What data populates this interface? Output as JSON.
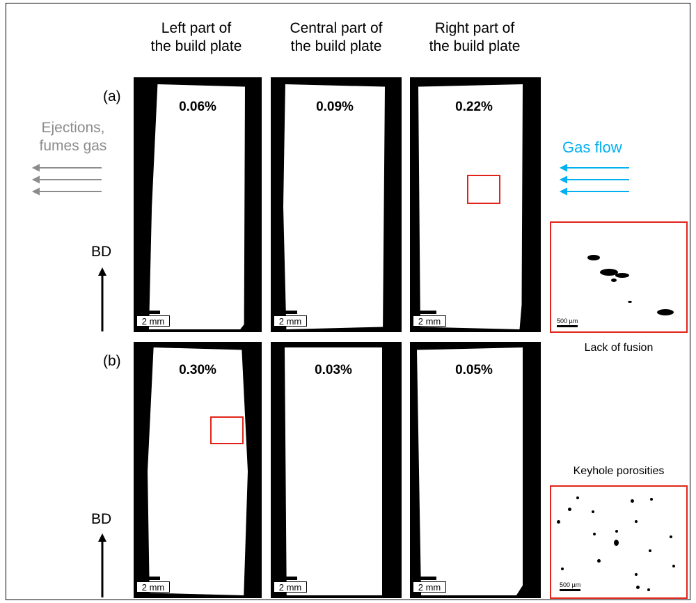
{
  "columns": [
    "Left part of the build plate",
    "Central part of the build plate",
    "Right part of the build plate"
  ],
  "column_lines": [
    [
      "Left part of",
      "the build plate"
    ],
    [
      "Central part of",
      "the build plate"
    ],
    [
      "Right part of",
      "the build plate"
    ]
  ],
  "rows": [
    {
      "label": "(a)",
      "porosity": [
        "0.06%",
        "0.09%",
        "0.22%"
      ]
    },
    {
      "label": "(b)",
      "porosity": [
        "0.30%",
        "0.03%",
        "0.05%"
      ]
    }
  ],
  "scale_bar": "2 mm",
  "inset_scale_bar": "500 µm",
  "build_direction": "BD",
  "left_note": [
    "Ejections,",
    "fumes gas"
  ],
  "right_note": "Gas flow",
  "insets": [
    {
      "caption": "Lack of fusion"
    },
    {
      "caption": "Keyhole porosities"
    }
  ],
  "colors": {
    "left_note": "#8c8c8c",
    "right_note": "#00b0f0",
    "highlight": "#e2231a",
    "arrows_left": "#8c8c8c",
    "arrows_right": "#00b0f0"
  }
}
